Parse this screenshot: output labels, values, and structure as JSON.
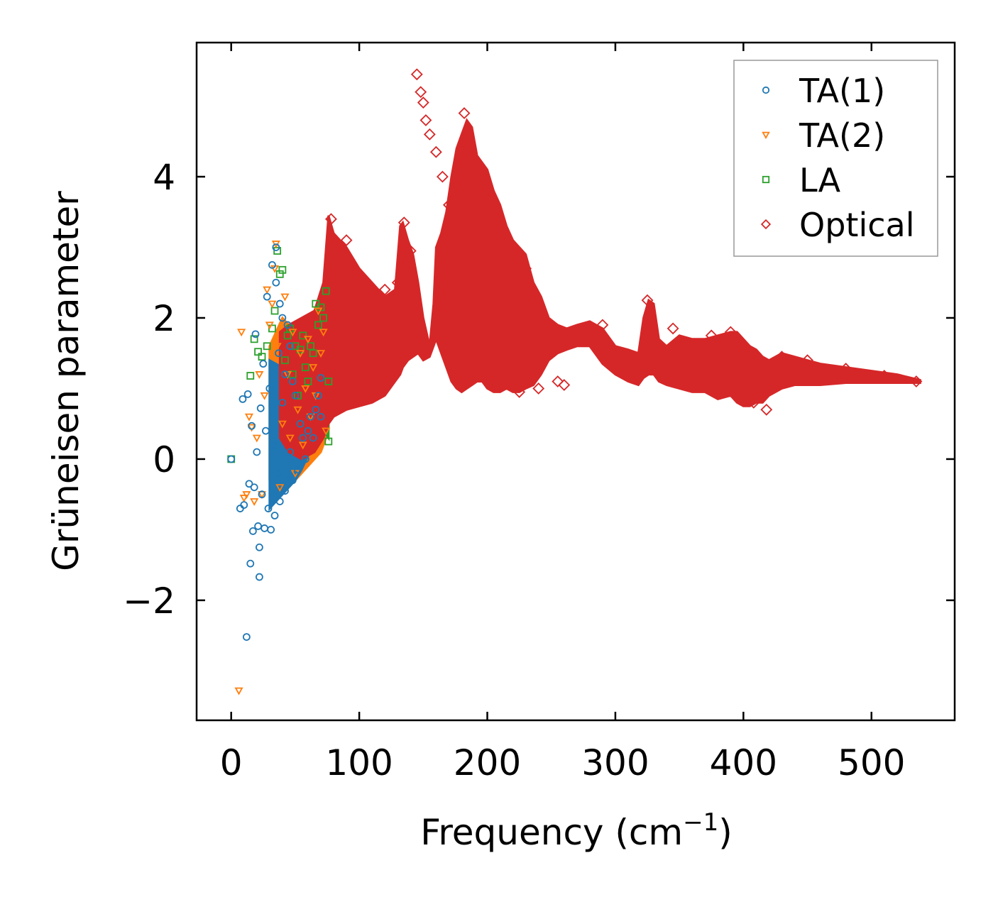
{
  "chart_data": {
    "type": "scatter",
    "title": "",
    "xlabel": "Frequency (cm",
    "xlabel_sup": "−1",
    "xlabel_close": ")",
    "ylabel": "Grüneisen parameter",
    "xlim": [
      -27,
      565
    ],
    "ylim": [
      -3.7,
      5.9
    ],
    "x_ticks": [
      0,
      100,
      200,
      300,
      400,
      500
    ],
    "x_tick_labels": [
      "0",
      "100",
      "200",
      "300",
      "400",
      "500"
    ],
    "y_ticks": [
      -2,
      0,
      2,
      4
    ],
    "y_tick_labels": [
      "−2",
      "0",
      "2",
      "4"
    ],
    "legend_position": "top-right",
    "series": [
      {
        "name": "TA(1)",
        "marker": "circle",
        "color": "#1f77b4",
        "points": [
          [
            0,
            0
          ],
          [
            7,
            -0.7
          ],
          [
            9,
            0.85
          ],
          [
            10,
            -0.65
          ],
          [
            12,
            -2.52
          ],
          [
            13,
            0.92
          ],
          [
            14,
            -0.35
          ],
          [
            15,
            -1.48
          ],
          [
            16,
            0.47
          ],
          [
            17,
            -1.02
          ],
          [
            18,
            -0.4
          ],
          [
            19,
            1.77
          ],
          [
            20,
            0.1
          ],
          [
            21,
            -0.95
          ],
          [
            22,
            -1.67
          ],
          [
            22,
            -1.25
          ],
          [
            23,
            0.72
          ],
          [
            24,
            -0.5
          ],
          [
            25,
            1.35
          ],
          [
            26,
            -0.98
          ],
          [
            27,
            0.4
          ],
          [
            28,
            2.3
          ],
          [
            29,
            -0.7
          ],
          [
            30,
            1.0
          ],
          [
            31,
            -1.0
          ],
          [
            32,
            2.75
          ],
          [
            33,
            0.2
          ],
          [
            34,
            -0.8
          ],
          [
            35,
            3.0
          ],
          [
            35,
            2.5
          ],
          [
            36,
            -0.2
          ],
          [
            37,
            1.5
          ],
          [
            38,
            2.2
          ],
          [
            38,
            -0.6
          ],
          [
            40,
            2.0
          ],
          [
            40,
            0.8
          ],
          [
            42,
            1.2
          ],
          [
            42,
            -0.45
          ],
          [
            44,
            1.9
          ],
          [
            44,
            -0.3
          ],
          [
            46,
            1.6
          ],
          [
            46,
            0.1
          ],
          [
            48,
            1.1
          ],
          [
            48,
            -0.3
          ],
          [
            50,
            0.9
          ],
          [
            52,
            -0.15
          ],
          [
            54,
            0.5
          ],
          [
            56,
            0.3
          ],
          [
            58,
            0.0
          ],
          [
            60,
            0.4
          ],
          [
            62,
            0.6
          ],
          [
            64,
            0.3
          ],
          [
            66,
            0.7
          ],
          [
            68,
            0.9
          ],
          [
            70,
            1.15
          ],
          [
            70,
            0.6
          ]
        ]
      },
      {
        "name": "TA(2)",
        "marker": "triangle",
        "color": "#ff7f0e",
        "points": [
          [
            6,
            -3.28
          ],
          [
            8,
            1.8
          ],
          [
            10,
            -0.55
          ],
          [
            12,
            -0.5
          ],
          [
            14,
            0.6
          ],
          [
            16,
            0.45
          ],
          [
            18,
            -0.6
          ],
          [
            20,
            0.3
          ],
          [
            22,
            1.2
          ],
          [
            24,
            -0.5
          ],
          [
            26,
            0.9
          ],
          [
            28,
            2.4
          ],
          [
            30,
            1.9
          ],
          [
            32,
            2.2
          ],
          [
            34,
            2.7
          ],
          [
            35,
            3.05
          ],
          [
            36,
            1.6
          ],
          [
            38,
            -0.4
          ],
          [
            40,
            0.5
          ],
          [
            42,
            2.3
          ],
          [
            44,
            1.2
          ],
          [
            46,
            0.3
          ],
          [
            48,
            1.8
          ],
          [
            50,
            -0.2
          ],
          [
            52,
            0.7
          ],
          [
            54,
            1.5
          ],
          [
            56,
            0.2
          ],
          [
            58,
            1.0
          ],
          [
            60,
            1.7
          ],
          [
            62,
            0.6
          ],
          [
            64,
            1.3
          ],
          [
            66,
            0.9
          ],
          [
            68,
            2.1
          ],
          [
            70,
            1.5
          ],
          [
            72,
            1.8
          ],
          [
            74,
            0.4
          ]
        ]
      },
      {
        "name": "LA",
        "marker": "square",
        "color": "#2ca02c",
        "points": [
          [
            0,
            0
          ],
          [
            15,
            1.18
          ],
          [
            18,
            1.7
          ],
          [
            21,
            1.52
          ],
          [
            24,
            1.45
          ],
          [
            28,
            1.6
          ],
          [
            32,
            1.85
          ],
          [
            34,
            2.1
          ],
          [
            36,
            2.95
          ],
          [
            38,
            2.62
          ],
          [
            40,
            2.68
          ],
          [
            42,
            1.4
          ],
          [
            44,
            1.75
          ],
          [
            46,
            1.85
          ],
          [
            48,
            1.2
          ],
          [
            50,
            1.6
          ],
          [
            52,
            0.9
          ],
          [
            54,
            1.55
          ],
          [
            56,
            1.75
          ],
          [
            58,
            1.3
          ],
          [
            60,
            1.1
          ],
          [
            62,
            1.6
          ],
          [
            64,
            1.5
          ],
          [
            66,
            2.2
          ],
          [
            68,
            1.9
          ],
          [
            70,
            2.15
          ],
          [
            72,
            2.0
          ],
          [
            74,
            2.38
          ],
          [
            76,
            1.1
          ],
          [
            76,
            0.25
          ]
        ]
      },
      {
        "name": "Optical",
        "marker": "diamond",
        "color": "#d62728",
        "points": [
          [
            145,
            5.45
          ],
          [
            148,
            5.2
          ],
          [
            150,
            5.05
          ],
          [
            152,
            4.8
          ],
          [
            155,
            4.6
          ],
          [
            160,
            4.35
          ],
          [
            165,
            4.0
          ],
          [
            170,
            3.6
          ],
          [
            175,
            3.3
          ],
          [
            178,
            3.9
          ],
          [
            182,
            4.9
          ],
          [
            185,
            4.6
          ],
          [
            188,
            4.3
          ],
          [
            192,
            4.1
          ],
          [
            196,
            3.9
          ],
          [
            200,
            3.6
          ],
          [
            205,
            3.3
          ],
          [
            210,
            3.2
          ],
          [
            218,
            3.0
          ],
          [
            225,
            2.9
          ],
          [
            230,
            2.7
          ],
          [
            78,
            3.4
          ],
          [
            90,
            3.1
          ],
          [
            100,
            2.4
          ],
          [
            110,
            2.2
          ],
          [
            120,
            2.4
          ],
          [
            130,
            2.5
          ],
          [
            135,
            3.35
          ],
          [
            140,
            2.95
          ],
          [
            225,
            0.95
          ],
          [
            235,
            1.3
          ],
          [
            240,
            1.0
          ],
          [
            245,
            1.9
          ],
          [
            255,
            1.1
          ],
          [
            260,
            1.05
          ],
          [
            290,
            1.9
          ],
          [
            300,
            1.5
          ],
          [
            325,
            2.25
          ],
          [
            345,
            1.85
          ],
          [
            350,
            1.6
          ],
          [
            375,
            1.75
          ],
          [
            390,
            1.8
          ],
          [
            400,
            1.55
          ],
          [
            408,
            0.8
          ],
          [
            418,
            0.7
          ],
          [
            430,
            1.45
          ],
          [
            450,
            1.4
          ],
          [
            480,
            1.28
          ],
          [
            510,
            1.18
          ],
          [
            535,
            1.1
          ]
        ]
      }
    ],
    "envelopes": [
      {
        "name": "acoustic-ta2-fill",
        "color": "#ff7f0e",
        "x": [
          30,
          40,
          50,
          60,
          70,
          76
        ],
        "upper": [
          1.6,
          2.0,
          1.8,
          1.6,
          1.9,
          1.7
        ],
        "lower": [
          -0.3,
          -0.5,
          -0.3,
          -0.1,
          0.1,
          0.4
        ]
      },
      {
        "name": "acoustic-la-fill",
        "color": "#2ca02c",
        "x": [
          44,
          50,
          60,
          68,
          72,
          76
        ],
        "upper": [
          1.6,
          1.85,
          1.7,
          2.2,
          2.3,
          1.9
        ],
        "lower": [
          1.0,
          0.9,
          0.6,
          0.5,
          0.4,
          0.3
        ]
      },
      {
        "name": "acoustic-ta1-fill",
        "color": "#1f77b4",
        "x": [
          30,
          40,
          50,
          55,
          60,
          65,
          70
        ],
        "upper": [
          1.4,
          1.3,
          0.9,
          0.8,
          0.8,
          0.9,
          1.1
        ],
        "lower": [
          -0.7,
          -0.5,
          -0.3,
          -0.15,
          0.05,
          0.2,
          0.3
        ]
      },
      {
        "name": "optical-fill",
        "color": "#d62728",
        "x": [
          38,
          45,
          55,
          65,
          72,
          76,
          80,
          90,
          100,
          110,
          120,
          128,
          132,
          134,
          138,
          142,
          146,
          150,
          155,
          158,
          160,
          164,
          168,
          172,
          176,
          180,
          184,
          188,
          192,
          196,
          200,
          205,
          210,
          215,
          220,
          225,
          230,
          236,
          242,
          248,
          255,
          262,
          270,
          280,
          290,
          300,
          310,
          318,
          322,
          326,
          330,
          334,
          340,
          350,
          360,
          370,
          380,
          390,
          395,
          400,
          405,
          410,
          415,
          420,
          430,
          440,
          460,
          480,
          500,
          520,
          538
        ],
        "upper": [
          1.8,
          1.9,
          2.0,
          2.1,
          2.5,
          3.45,
          3.2,
          3.0,
          2.7,
          2.5,
          2.3,
          2.4,
          3.3,
          3.35,
          3.1,
          2.9,
          2.5,
          2.0,
          1.6,
          2.2,
          3.0,
          3.2,
          3.5,
          4.0,
          4.4,
          4.6,
          4.8,
          4.7,
          4.3,
          4.2,
          4.1,
          3.8,
          3.6,
          3.3,
          3.1,
          3.0,
          2.9,
          2.5,
          2.3,
          2.0,
          1.9,
          1.85,
          1.9,
          1.95,
          1.85,
          1.6,
          1.55,
          1.5,
          2.0,
          2.25,
          2.2,
          1.7,
          1.6,
          1.75,
          1.7,
          1.7,
          1.75,
          1.8,
          1.8,
          1.7,
          1.6,
          1.55,
          1.45,
          1.4,
          1.5,
          1.45,
          1.35,
          1.3,
          1.25,
          1.2,
          1.12
        ],
        "lower": [
          0.3,
          0.1,
          0.0,
          0.1,
          0.3,
          0.5,
          0.6,
          0.7,
          0.75,
          0.8,
          0.9,
          1.1,
          1.2,
          1.3,
          1.4,
          1.45,
          1.5,
          1.4,
          1.45,
          1.6,
          1.7,
          1.5,
          1.3,
          1.1,
          1.0,
          0.95,
          1.0,
          1.05,
          1.1,
          1.1,
          1.0,
          0.95,
          0.95,
          1.0,
          0.95,
          0.95,
          1.0,
          1.05,
          1.2,
          1.4,
          1.5,
          1.55,
          1.6,
          1.6,
          1.35,
          1.2,
          1.1,
          1.05,
          1.15,
          1.2,
          1.2,
          1.1,
          1.05,
          1.0,
          0.95,
          0.95,
          0.85,
          0.9,
          0.8,
          0.75,
          0.75,
          0.8,
          0.8,
          0.9,
          1.0,
          1.05,
          1.05,
          1.08,
          1.08,
          1.08,
          1.08
        ]
      }
    ]
  }
}
